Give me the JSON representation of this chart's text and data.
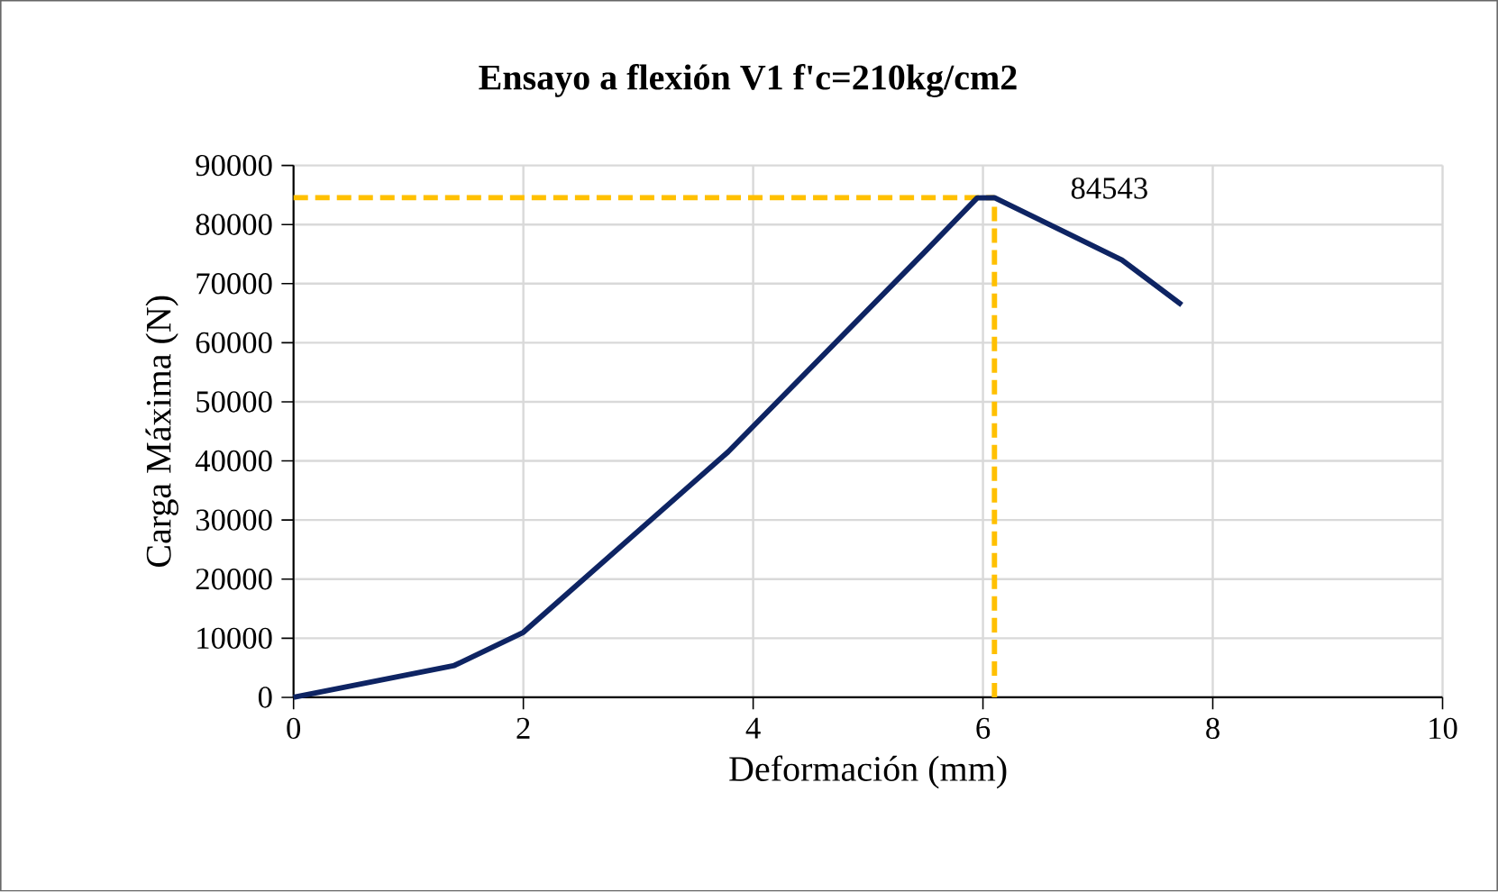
{
  "chart_data": {
    "type": "line",
    "title": "Ensayo a flexión V1 f'c=210kg/cm2",
    "xlabel": "Deformación (mm)",
    "ylabel": "Carga Máxima (N)",
    "x": [
      0,
      1.4,
      2.0,
      3.78,
      5.48,
      5.95,
      6.1,
      7.21,
      7.73
    ],
    "series": [
      {
        "color": "#0e2463",
        "values": [
          0,
          5400,
          11000,
          41500,
          75100,
          84500,
          84543,
          74000,
          66400
        ]
      }
    ],
    "xlim": [
      0,
      10
    ],
    "xticks": [
      0,
      2,
      4,
      6,
      8,
      10
    ],
    "ylim": [
      0,
      90000
    ],
    "yticks": [
      0,
      10000,
      20000,
      30000,
      40000,
      50000,
      60000,
      70000,
      80000,
      90000
    ],
    "grid": true,
    "marker": "none",
    "line_style": "solid",
    "ref_lines": [
      {
        "axis": "y",
        "value": 84543,
        "color": "#ffc000",
        "line_style": "dashed"
      },
      {
        "axis": "x",
        "value": 6.1,
        "color": "#ffc000",
        "line_style": "dashed"
      }
    ],
    "annotations": [
      {
        "text": "84543",
        "x": 6.1,
        "y": 84543
      }
    ]
  }
}
